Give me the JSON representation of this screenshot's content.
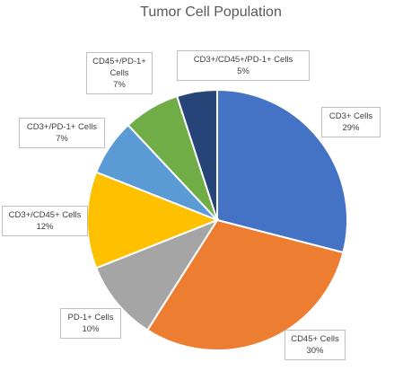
{
  "chart_data": {
    "type": "pie",
    "title": "Tumor Cell Population",
    "slices": [
      {
        "label": "CD3+ Cells",
        "value": 29,
        "percent_label": "29%",
        "color": "#4472c4"
      },
      {
        "label": "CD45+ Cells",
        "value": 30,
        "percent_label": "30%",
        "color": "#ed7d31"
      },
      {
        "label": "PD-1+ Cells",
        "value": 10,
        "percent_label": "10%",
        "color": "#a5a5a5"
      },
      {
        "label": "CD3+/CD45+ Cells",
        "value": 12,
        "percent_label": "12%",
        "color": "#ffc000"
      },
      {
        "label": "CD3+/PD-1+ Cells",
        "value": 7,
        "percent_label": "7%",
        "color": "#5b9bd5"
      },
      {
        "label": "CD45+/PD-1+ Cells",
        "value": 7,
        "percent_label": "7%",
        "color": "#70ad47"
      },
      {
        "label": "CD3+/CD45+/PD-1+ Cells",
        "value": 5,
        "percent_label": "5%",
        "color": "#264478"
      }
    ],
    "start_angle": "12 o'clock",
    "direction": "clockwise"
  }
}
